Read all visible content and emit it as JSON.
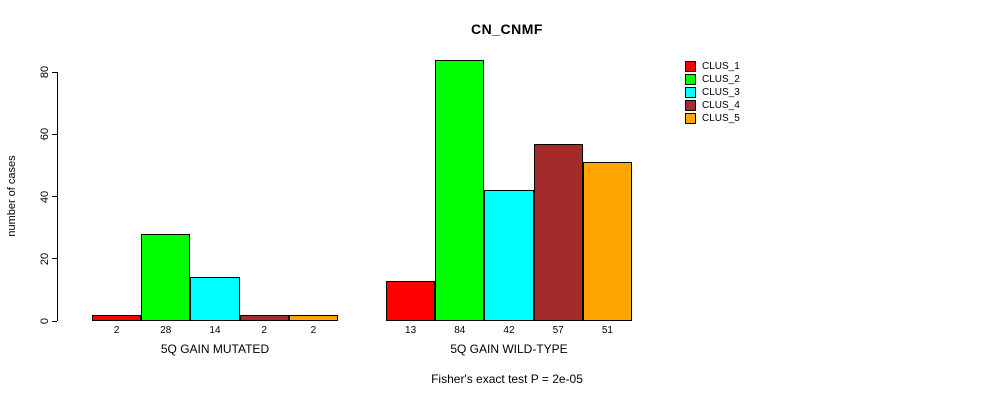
{
  "chart_data": {
    "type": "bar",
    "title": "CN_CNMF",
    "ylabel": "number of cases",
    "xlabel": "",
    "ylim": [
      0,
      84
    ],
    "yticks": [
      0,
      20,
      40,
      60,
      80
    ],
    "grid": false,
    "legend_position": "right",
    "series_names": [
      "CLUS_1",
      "CLUS_2",
      "CLUS_3",
      "CLUS_4",
      "CLUS_5"
    ],
    "colors": [
      "#ff0000",
      "#00ff00",
      "#00ffff",
      "#a52a2a",
      "#ffa500"
    ],
    "groups": [
      {
        "label": "5Q GAIN MUTATED",
        "values": [
          2,
          28,
          14,
          2,
          2
        ]
      },
      {
        "label": "5Q GAIN WILD-TYPE",
        "values": [
          13,
          84,
          42,
          57,
          51
        ]
      }
    ],
    "annotation": "Fisher's exact test P = 2e-05"
  }
}
